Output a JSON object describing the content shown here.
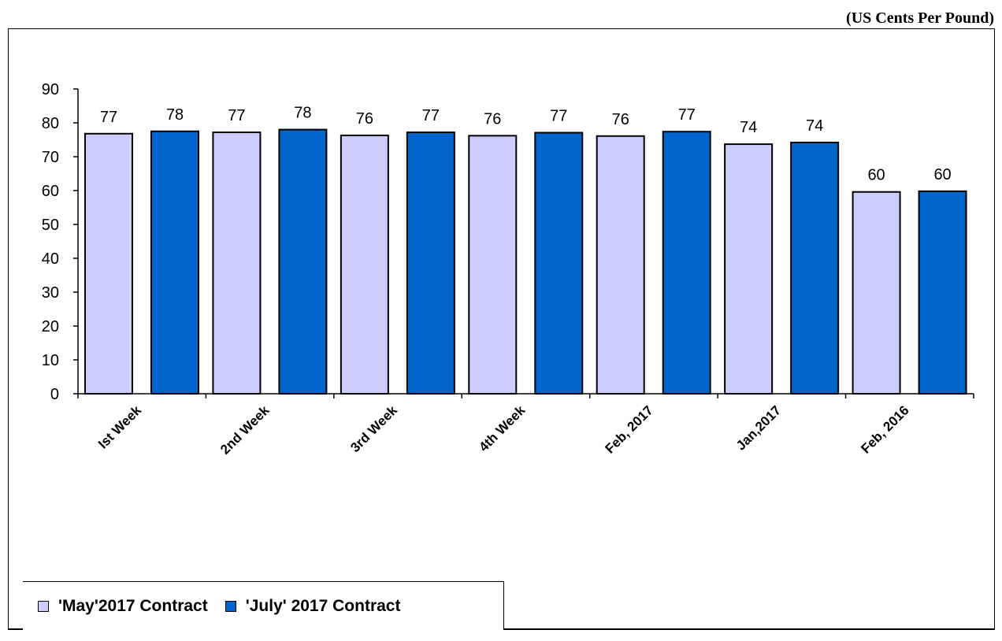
{
  "unit_label": "(US Cents Per Pound)",
  "colors": {
    "may": "#CCCCFF",
    "july": "#0066CC",
    "axis": "#000000"
  },
  "chart_data": {
    "type": "bar",
    "title": "",
    "xlabel": "",
    "ylabel": "",
    "ylim": [
      0,
      90
    ],
    "yticks": [
      0,
      10,
      20,
      30,
      40,
      50,
      60,
      70,
      80,
      90
    ],
    "categories": [
      "Ist Week",
      "2nd Week",
      "3rd Week",
      "4th Week",
      "Feb, 2017",
      "Jan,2017",
      "Feb, 2016"
    ],
    "series": [
      {
        "name": "'May'2017 Contract",
        "values": [
          76.8,
          77.2,
          76.3,
          76.2,
          76.1,
          73.7,
          59.6
        ],
        "labels": [
          "77",
          "77",
          "76",
          "76",
          "76",
          "74",
          "60"
        ]
      },
      {
        "name": "'July' 2017 Contract",
        "values": [
          77.5,
          78.0,
          77.2,
          77.1,
          77.4,
          74.2,
          59.8
        ],
        "labels": [
          "78",
          "78",
          "77",
          "77",
          "77",
          "74",
          "60"
        ]
      }
    ],
    "legend_position": "bottom-left",
    "grid": false
  }
}
